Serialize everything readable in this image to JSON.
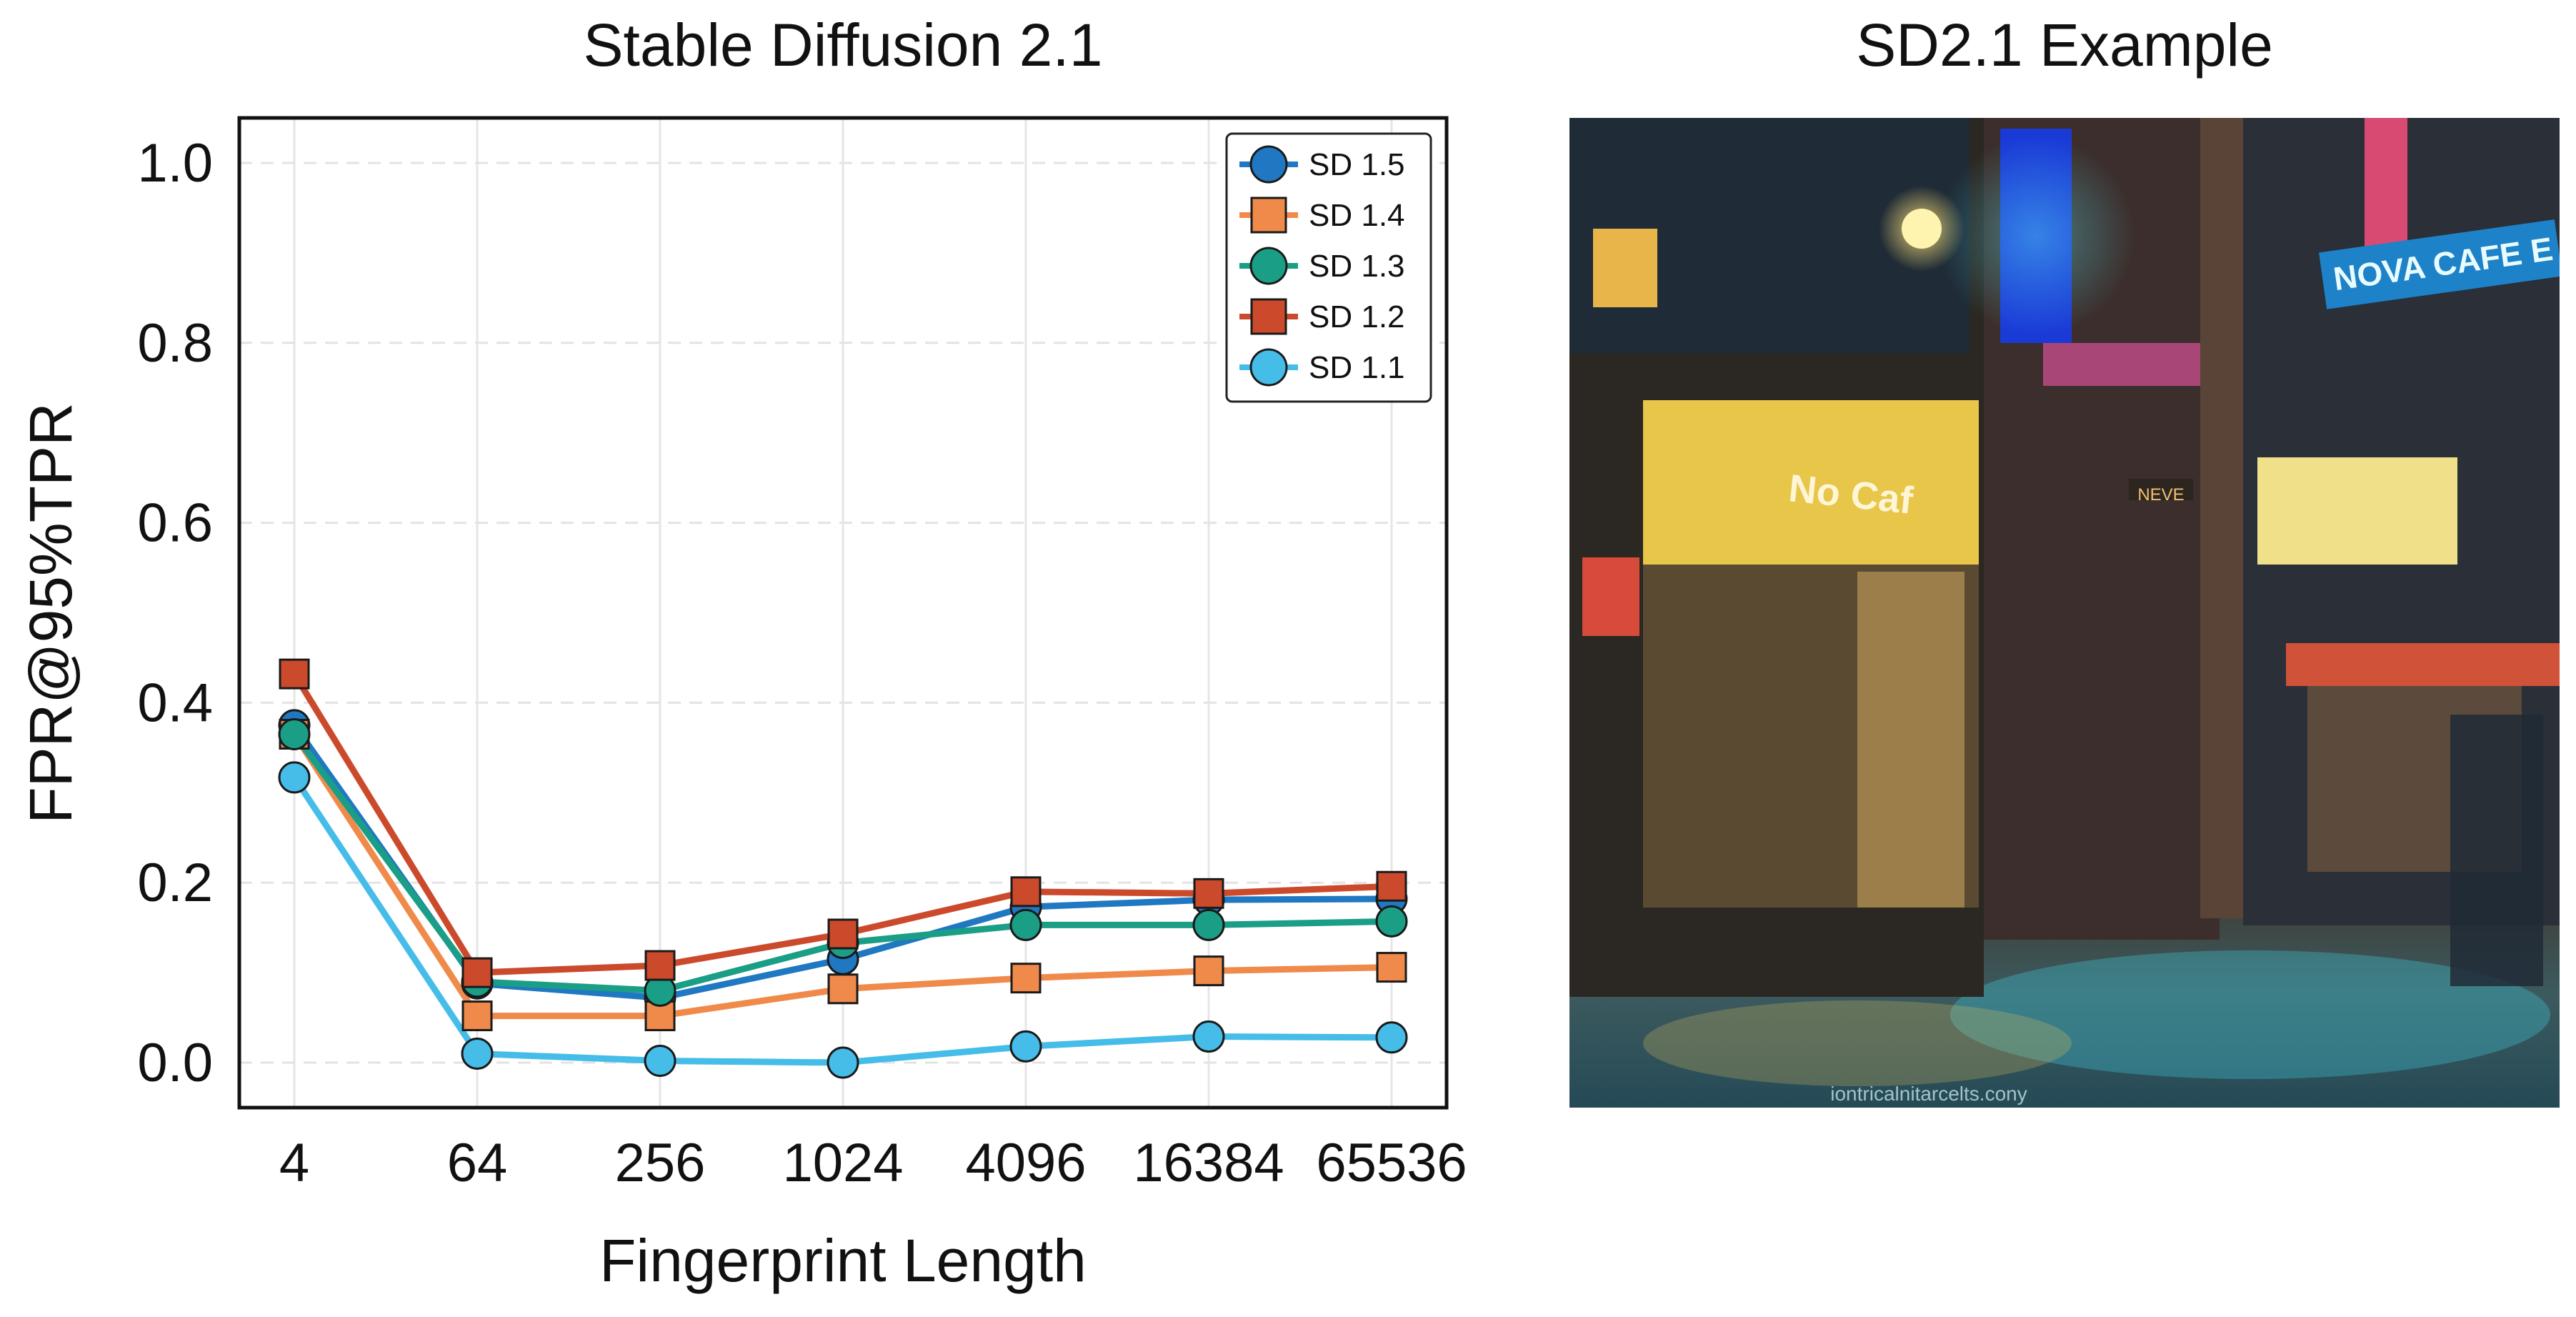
{
  "left_panel": {
    "title": "Stable Diffusion 2.1"
  },
  "right_panel": {
    "title": "SD2.1 Example",
    "image_signs": {
      "main_sign": "No Caf",
      "blue_sign": "NOVA CAFE E",
      "small_sign": "NEVE",
      "watermark": "iontricalnitarcelts.cony"
    }
  },
  "chart_data": {
    "type": "line",
    "xlabel": "Fingerprint Length",
    "ylabel": "FPR@95%TPR",
    "categories": [
      "4",
      "64",
      "256",
      "1024",
      "4096",
      "16384",
      "65536"
    ],
    "ylim": [
      -0.05,
      1.05
    ],
    "yticks": [
      0.0,
      0.2,
      0.4,
      0.6,
      0.8,
      1.0
    ],
    "ytick_labels": [
      "0.0",
      "0.2",
      "0.4",
      "0.6",
      "0.8",
      "1.0"
    ],
    "grid": true,
    "legend_position": "top-right",
    "series": [
      {
        "name": "SD 1.5",
        "marker": "circle",
        "color": "#1f78c1",
        "values": [
          0.375,
          0.088,
          0.072,
          0.115,
          0.173,
          0.181,
          0.182
        ]
      },
      {
        "name": "SD 1.4",
        "marker": "square",
        "color": "#f08a4b",
        "values": [
          0.365,
          0.052,
          0.052,
          0.082,
          0.094,
          0.102,
          0.106
        ]
      },
      {
        "name": "SD 1.3",
        "marker": "circle",
        "color": "#1b9e86",
        "values": [
          0.365,
          0.09,
          0.08,
          0.133,
          0.153,
          0.153,
          0.157
        ]
      },
      {
        "name": "SD 1.2",
        "marker": "square",
        "color": "#cc4a2c",
        "values": [
          0.432,
          0.1,
          0.108,
          0.143,
          0.19,
          0.188,
          0.196
        ]
      },
      {
        "name": "SD 1.1",
        "marker": "circle",
        "color": "#45bde8",
        "values": [
          0.317,
          0.01,
          0.002,
          0.0,
          0.018,
          0.029,
          0.028
        ]
      }
    ]
  }
}
